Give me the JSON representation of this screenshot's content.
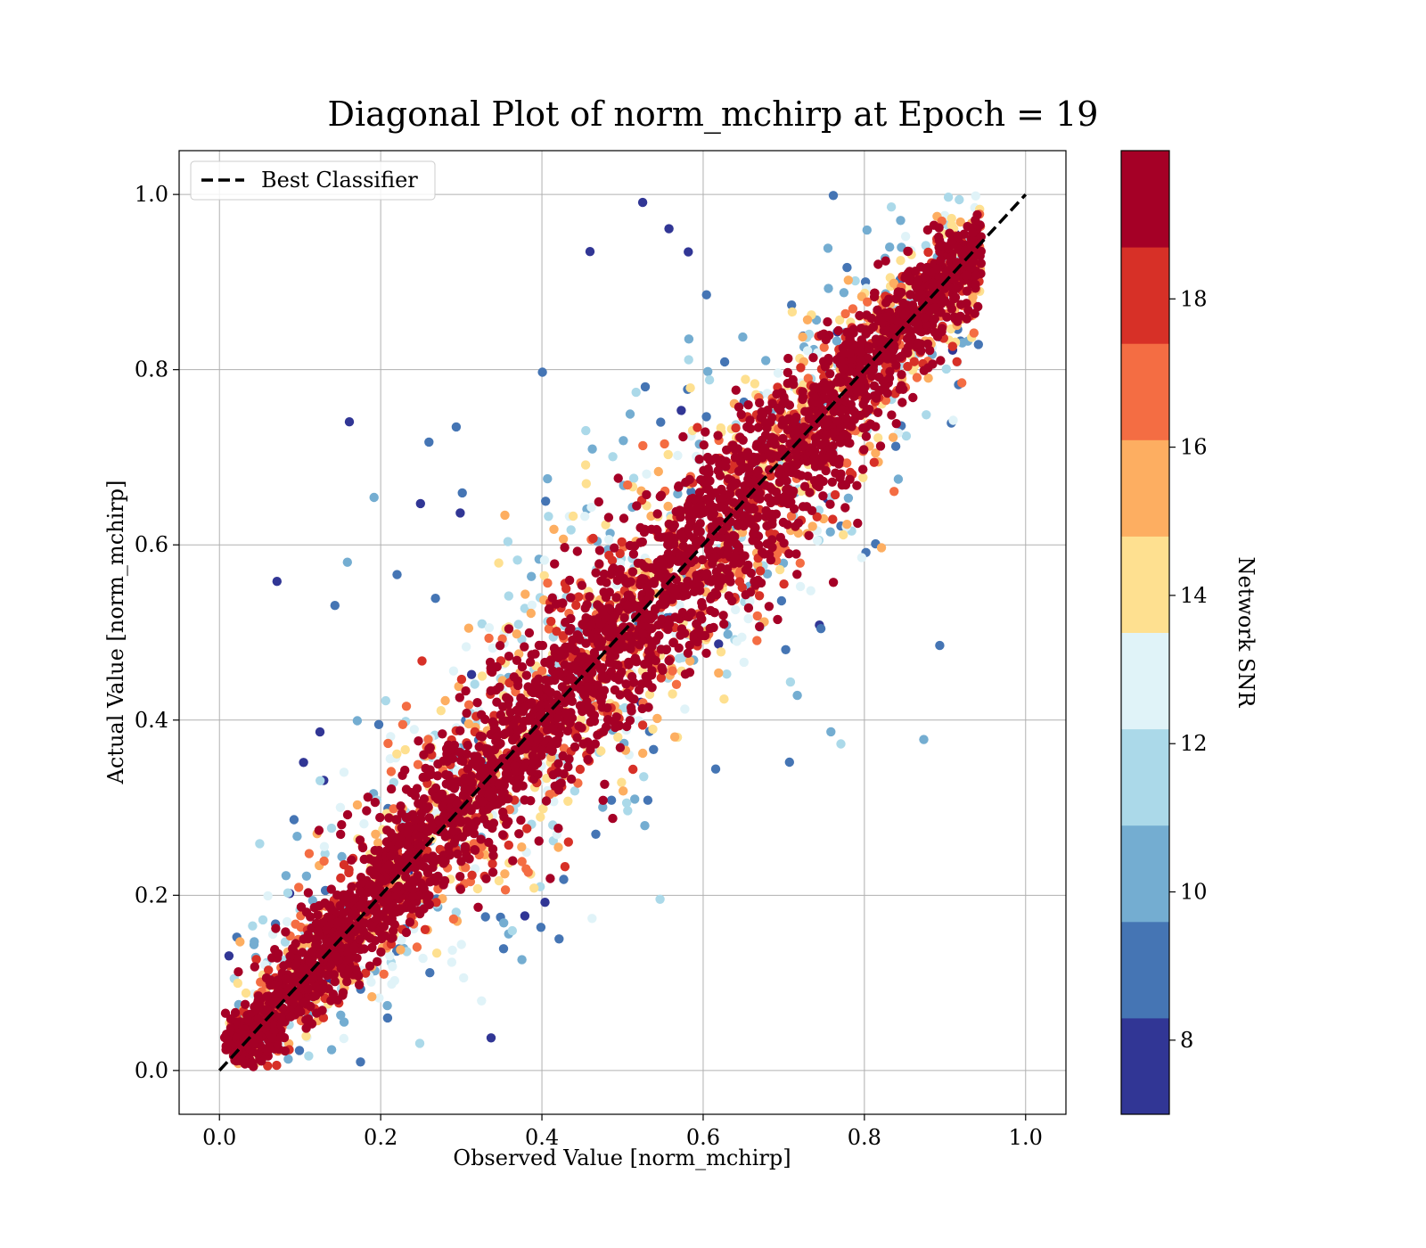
{
  "chart_data": {
    "type": "scatter",
    "title": "Diagonal Plot of norm_mchirp at Epoch = 19",
    "xlabel": "Observed Value [norm_mchirp]",
    "ylabel": "Actual Value [norm_mchirp]",
    "xlim": [
      -0.05,
      1.05
    ],
    "ylim": [
      -0.05,
      1.05
    ],
    "xticks": [
      0.0,
      0.2,
      0.4,
      0.6,
      0.8,
      1.0
    ],
    "yticks": [
      0.0,
      0.2,
      0.4,
      0.6,
      0.8,
      1.0
    ],
    "xtick_labels": [
      "0.0",
      "0.2",
      "0.4",
      "0.6",
      "0.8",
      "1.0"
    ],
    "ytick_labels": [
      "0.0",
      "0.2",
      "0.4",
      "0.6",
      "0.8",
      "1.0"
    ],
    "grid": true,
    "legend": {
      "position": "upper-left",
      "entries": [
        "Best Classifier"
      ]
    },
    "reference_line": {
      "name": "Best Classifier",
      "style": "dashed",
      "color": "#000000",
      "x": [
        0.0,
        1.0
      ],
      "y": [
        0.0,
        1.0
      ]
    },
    "scatter_description": "Dense cloud of points along the diagonal; high SNR points (dark red) lie tight on the diagonal, low SNR points (blue) spread widely above and below.",
    "colorbar": {
      "label": "Network SNR",
      "range": [
        7,
        20
      ],
      "ticks": [
        8,
        10,
        12,
        14,
        16,
        18
      ],
      "tick_labels": [
        "8",
        "10",
        "12",
        "14",
        "16",
        "18"
      ],
      "color_bins": [
        "#313695",
        "#4575b4",
        "#74add1",
        "#abd9e9",
        "#e0f3f8",
        "#fee090",
        "#fdae61",
        "#f46d43",
        "#d73027",
        "#a50026"
      ],
      "note": "Colormap RdYlBu_r discretised into bins; top bin (>=19) dark red"
    },
    "marker_color_ranges": {
      "very_low": "#313695",
      "low": "#4575b4",
      "mid_low": "#74add1",
      "mid": "#abd9e9",
      "mid_high": "#fee090",
      "high": "#fdae61",
      "higher": "#f46d43",
      "very_high": "#d73027",
      "top": "#a50026"
    }
  }
}
